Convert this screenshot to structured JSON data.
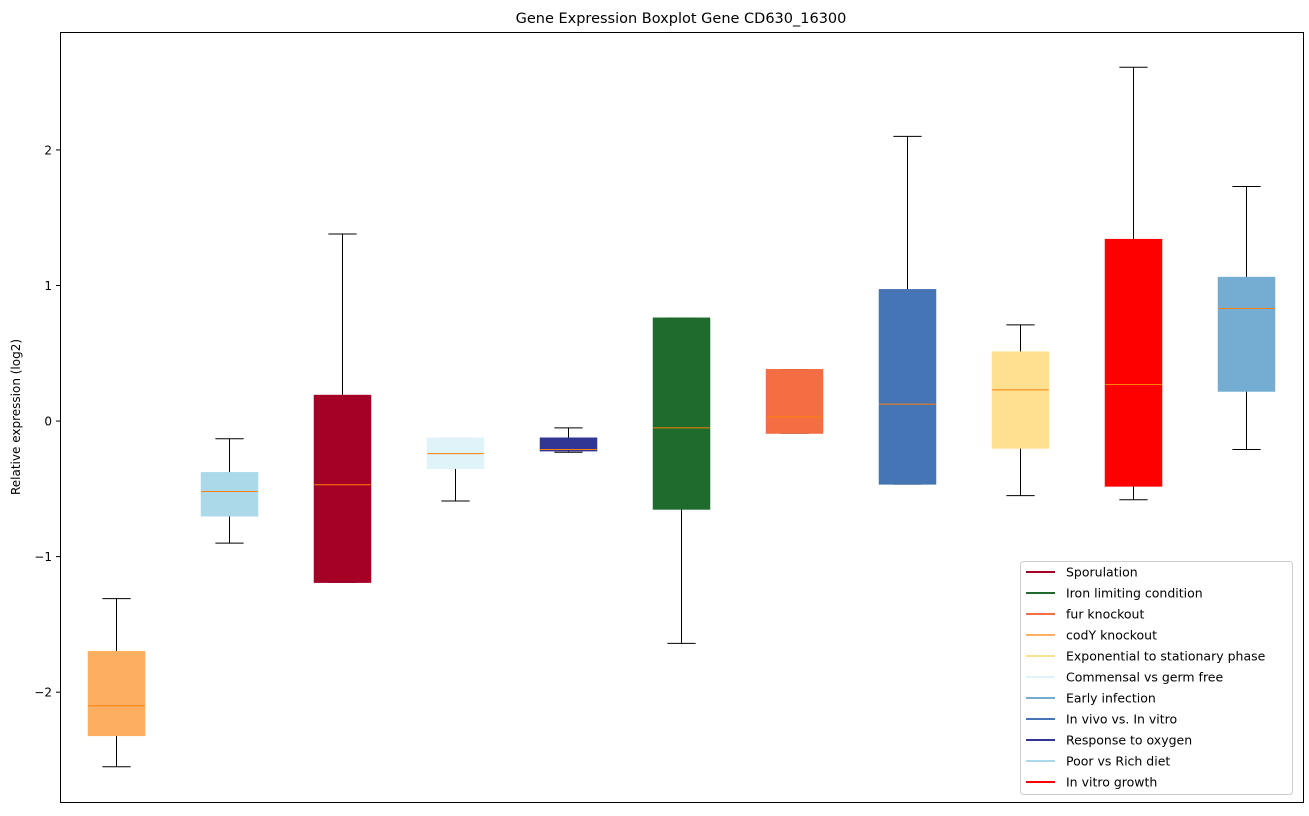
{
  "chart_data": {
    "type": "boxplot",
    "title": "Gene Expression Boxplot Gene CD630_16300",
    "xlabel": "",
    "ylabel": "Relative expression (log2)",
    "ylim": [
      -2.81,
      2.87
    ],
    "yticks": [
      -2,
      -1,
      0,
      1,
      2
    ],
    "ytick_labels": [
      "−2",
      "−1",
      "0",
      "1",
      "2"
    ],
    "grid": false,
    "legend_position": "lower-right",
    "median_color": "#ff7f0e",
    "boxes": [
      {
        "name": "codY knockout",
        "color": "#fdae61",
        "whislo": -2.55,
        "q1": -2.32,
        "med": -2.1,
        "q3": -1.7,
        "whishi": -1.31
      },
      {
        "name": "Poor vs Rich diet",
        "color": "#abd9e9",
        "whislo": -0.9,
        "q1": -0.7,
        "med": -0.52,
        "q3": -0.38,
        "whishi": -0.13
      },
      {
        "name": "Sporulation",
        "color": "#a50026",
        "whislo": -1.19,
        "q1": -1.19,
        "med": -0.47,
        "q3": 0.19,
        "whishi": 1.38
      },
      {
        "name": "Commensal vs germ free",
        "color": "#e0f3f8",
        "whislo": -0.59,
        "q1": -0.35,
        "med": -0.24,
        "q3": -0.125,
        "whishi": -0.125
      },
      {
        "name": "Response to oxygen",
        "color": "#313695",
        "whislo": -0.23,
        "q1": -0.22,
        "med": -0.21,
        "q3": -0.125,
        "whishi": -0.05
      },
      {
        "name": "Iron limiting condition",
        "color": "#1f6b2e",
        "whislo": -1.64,
        "q1": -0.65,
        "med": -0.05,
        "q3": 0.76,
        "whishi": 0.76
      },
      {
        "name": "fur knockout",
        "color": "#f46d43",
        "whislo": -0.09,
        "q1": -0.09,
        "med": 0.03,
        "q3": 0.38,
        "whishi": 0.38
      },
      {
        "name": "In vivo vs. In vitro",
        "color": "#4575b4",
        "whislo": -0.465,
        "q1": -0.465,
        "med": 0.125,
        "q3": 0.97,
        "whishi": 2.1
      },
      {
        "name": "Exponential to stationary phase",
        "color": "#fee090",
        "whislo": -0.55,
        "q1": -0.2,
        "med": 0.23,
        "q3": 0.51,
        "whishi": 0.71
      },
      {
        "name": "In vitro growth",
        "color": "#ff0000",
        "whislo": -0.58,
        "q1": -0.48,
        "med": 0.27,
        "q3": 1.34,
        "whishi": 2.61
      },
      {
        "name": "Early infection",
        "color": "#74add1",
        "whislo": -0.21,
        "q1": 0.22,
        "med": 0.83,
        "q3": 1.06,
        "whishi": 1.73
      }
    ],
    "legend": [
      {
        "label": "Sporulation",
        "color": "#a50026"
      },
      {
        "label": "Iron limiting condition",
        "color": "#1f6b2e"
      },
      {
        "label": "fur knockout",
        "color": "#f46d43"
      },
      {
        "label": "codY knockout",
        "color": "#fdae61"
      },
      {
        "label": "Exponential to stationary phase",
        "color": "#fee090"
      },
      {
        "label": "Commensal vs germ free",
        "color": "#e0f3f8"
      },
      {
        "label": "Early infection",
        "color": "#74add1"
      },
      {
        "label": "In vivo vs. In vitro",
        "color": "#4575b4"
      },
      {
        "label": "Response to oxygen",
        "color": "#313695"
      },
      {
        "label": "Poor vs Rich diet",
        "color": "#abd9e9"
      },
      {
        "label": "In vitro growth",
        "color": "#ff0000"
      }
    ]
  }
}
